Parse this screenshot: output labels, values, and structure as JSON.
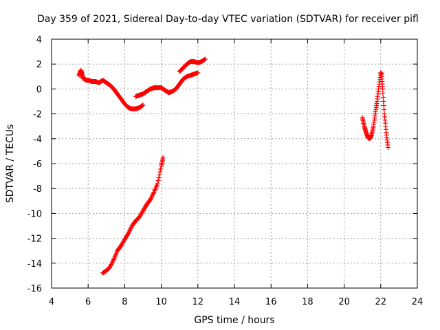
{
  "chart_data": {
    "type": "scatter",
    "title": "Day 359 of 2021, Sidereal Day-to-day VTEC variation (SDTVAR) for receiver pifl",
    "xlabel": "GPS time / hours",
    "ylabel": "SDTVAR / TECUs",
    "xlim": [
      4,
      24
    ],
    "ylim": [
      -16,
      4
    ],
    "xticks": [
      4,
      6,
      8,
      10,
      12,
      14,
      16,
      18,
      20,
      22,
      24
    ],
    "yticks": [
      -16,
      -14,
      -12,
      -10,
      -8,
      -6,
      -4,
      -2,
      0,
      2,
      4
    ],
    "grid": true,
    "marker": "plus",
    "marker_color": "#ff0000",
    "series": [
      {
        "x": [
          5.5,
          5.6,
          5.65,
          5.7,
          5.8,
          5.9,
          6.0,
          6.2,
          6.4,
          6.6,
          6.8,
          7.0,
          7.2,
          7.4,
          7.6,
          7.8,
          8.0,
          8.2,
          8.4,
          8.6,
          8.8,
          9.0
        ],
        "y": [
          1.1,
          1.5,
          1.3,
          0.9,
          0.8,
          0.7,
          0.7,
          0.6,
          0.6,
          0.5,
          0.7,
          0.5,
          0.3,
          0.0,
          -0.4,
          -0.8,
          -1.2,
          -1.5,
          -1.6,
          -1.6,
          -1.5,
          -1.3
        ]
      },
      {
        "x": [
          8.6,
          8.8,
          9.0,
          9.2,
          9.4,
          9.6,
          9.8,
          10.0,
          10.2,
          10.4,
          10.6,
          10.8,
          11.0,
          11.2,
          11.4,
          11.6,
          11.8,
          12.0
        ],
        "y": [
          -0.6,
          -0.5,
          -0.4,
          -0.2,
          0.0,
          0.1,
          0.1,
          0.1,
          -0.1,
          -0.3,
          -0.2,
          0.0,
          0.4,
          0.8,
          1.0,
          1.1,
          1.2,
          1.3
        ]
      },
      {
        "x": [
          11.0,
          11.2,
          11.4,
          11.6,
          11.8,
          12.0,
          12.2,
          12.4
        ],
        "y": [
          1.4,
          1.7,
          2.0,
          2.2,
          2.2,
          2.1,
          2.2,
          2.4
        ]
      },
      {
        "x": [
          6.8,
          7.0,
          7.2,
          7.4,
          7.6,
          7.8,
          8.0,
          8.2,
          8.4,
          8.6,
          8.8,
          9.0,
          9.2,
          9.4,
          9.6,
          9.8,
          10.0,
          10.1
        ],
        "y": [
          -14.8,
          -14.6,
          -14.3,
          -13.7,
          -13.0,
          -12.6,
          -12.1,
          -11.6,
          -11.0,
          -10.6,
          -10.3,
          -9.8,
          -9.3,
          -8.9,
          -8.3,
          -7.6,
          -6.2,
          -5.5
        ]
      },
      {
        "x": [
          21.0,
          21.1,
          21.2,
          21.3,
          21.4,
          21.5,
          21.6,
          21.7,
          21.8,
          21.9,
          22.0,
          22.05,
          22.1,
          22.2,
          22.3,
          22.4
        ],
        "y": [
          -2.3,
          -3.0,
          -3.5,
          -3.9,
          -4.0,
          -3.7,
          -3.0,
          -2.0,
          -1.0,
          0.2,
          1.3,
          1.2,
          0.0,
          -2.0,
          -3.5,
          -4.7
        ]
      }
    ]
  }
}
